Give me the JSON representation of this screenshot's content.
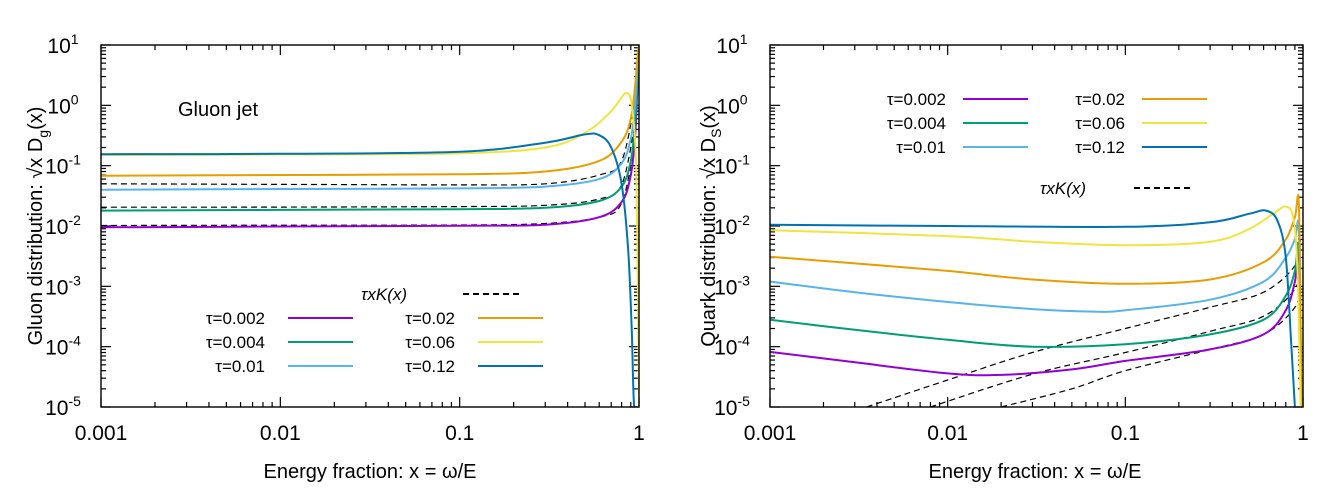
{
  "chart_data": [
    {
      "type": "line",
      "name": "gluon",
      "annotation": "Gluon jet",
      "ylabel": "Gluon distribution: √x D",
      "ylabel_sub": "g",
      "ylabel_end": "(x)",
      "xlabel": "Energy fraction:  x = ω/E",
      "xscale": "log",
      "yscale": "log",
      "xlim": [
        0.001,
        1
      ],
      "ylim_exp": [
        -5,
        1
      ],
      "x_ticks": [
        0.001,
        0.01,
        0.1,
        1
      ],
      "x_tick_labels": [
        "0.001",
        "0.01",
        "0.1",
        "1"
      ],
      "y_tick_exponents": [
        -5,
        -4,
        -3,
        -2,
        -1,
        0,
        1
      ],
      "y_tick_labels": [
        "10",
        "10",
        "10",
        "10",
        "10",
        "10",
        "10"
      ],
      "y_tick_sup": [
        "-5",
        "-4",
        "-3",
        "-2",
        "-1",
        "0",
        "1"
      ],
      "legend_title": "τxK(x)",
      "legend_position": "bottom-right",
      "series": [
        {
          "name": "τ=0.002",
          "color": "#9400d3",
          "x": [
            0.001,
            0.01,
            0.1,
            0.3,
            0.6,
            0.8,
            0.9,
            0.95,
            0.98,
            1.0
          ],
          "y": [
            0.0095,
            0.0098,
            0.0101,
            0.0105,
            0.014,
            0.025,
            0.07,
            0.3,
            2,
            8
          ]
        },
        {
          "name": "τ=0.004",
          "color": "#009e73",
          "x": [
            0.001,
            0.01,
            0.1,
            0.3,
            0.6,
            0.8,
            0.9,
            0.95,
            0.98,
            1.0
          ],
          "y": [
            0.018,
            0.0185,
            0.019,
            0.02,
            0.026,
            0.045,
            0.12,
            0.5,
            2.5,
            9
          ]
        },
        {
          "name": "τ=0.01",
          "color": "#56b4e9",
          "x": [
            0.001,
            0.01,
            0.1,
            0.3,
            0.6,
            0.8,
            0.9,
            0.95,
            0.98,
            1.0
          ],
          "y": [
            0.04,
            0.041,
            0.042,
            0.045,
            0.06,
            0.11,
            0.28,
            1.0,
            4,
            10
          ]
        },
        {
          "name": "τ=0.02",
          "color": "#e69f00",
          "x": [
            0.001,
            0.01,
            0.1,
            0.3,
            0.6,
            0.8,
            0.9,
            0.95,
            0.98,
            1.0
          ],
          "y": [
            0.068,
            0.07,
            0.072,
            0.08,
            0.12,
            0.25,
            0.6,
            2,
            6,
            10
          ]
        },
        {
          "name": "τ=0.06",
          "color": "#f0e442",
          "x": [
            0.001,
            0.01,
            0.1,
            0.3,
            0.5,
            0.7,
            0.85,
            0.92,
            0.97,
            1.0
          ],
          "y": [
            0.15,
            0.153,
            0.16,
            0.2,
            0.35,
            0.8,
            1.6,
            0.8,
            0.05,
            1e-05
          ]
        },
        {
          "name": "τ=0.12",
          "color": "#0072b2",
          "x": [
            0.001,
            0.01,
            0.1,
            0.3,
            0.5,
            0.6,
            0.7,
            0.8,
            0.87,
            0.91,
            0.94,
            1.0
          ],
          "y": [
            0.155,
            0.157,
            0.17,
            0.24,
            0.33,
            0.32,
            0.2,
            0.05,
            0.004,
            0.0002,
            1e-05,
            1e-05
          ]
        }
      ],
      "reference": [
        {
          "name": "τxK(x), τ=0.002",
          "x": [
            0.001,
            0.01,
            0.1,
            0.3,
            0.6,
            0.8,
            0.95
          ],
          "y": [
            0.0102,
            0.0103,
            0.0104,
            0.011,
            0.014,
            0.024,
            0.25
          ]
        },
        {
          "name": "τxK(x), τ=0.004",
          "x": [
            0.001,
            0.01,
            0.1,
            0.3,
            0.6,
            0.8,
            0.95
          ],
          "y": [
            0.0205,
            0.0206,
            0.021,
            0.022,
            0.028,
            0.048,
            0.5
          ]
        },
        {
          "name": "τxK(x), τ=0.01",
          "x": [
            0.001,
            0.01,
            0.1,
            0.3,
            0.6,
            0.8,
            0.95
          ],
          "y": [
            0.05,
            0.049,
            0.048,
            0.05,
            0.07,
            0.12,
            1.2
          ]
        }
      ]
    },
    {
      "type": "line",
      "name": "quark",
      "annotation": "",
      "ylabel": "Quark distribution: √x D",
      "ylabel_sub": "S",
      "ylabel_end": "(x)",
      "xlabel": "Energy fraction:  x = ω/E",
      "xscale": "log",
      "yscale": "log",
      "xlim": [
        0.001,
        1
      ],
      "ylim_exp": [
        -5,
        1
      ],
      "x_ticks": [
        0.001,
        0.01,
        0.1,
        1
      ],
      "x_tick_labels": [
        "0.001",
        "0.01",
        "0.1",
        "1"
      ],
      "y_tick_exponents": [
        -5,
        -4,
        -3,
        -2,
        -1,
        0,
        1
      ],
      "y_tick_labels": [
        "10",
        "10",
        "10",
        "10",
        "10",
        "10",
        "10"
      ],
      "y_tick_sup": [
        "-5",
        "-4",
        "-3",
        "-2",
        "-1",
        "0",
        "1"
      ],
      "legend_title": "τxK(x)",
      "legend_position": "top-right",
      "series": [
        {
          "name": "τ=0.002",
          "color": "#9400d3",
          "x": [
            0.001,
            0.003,
            0.01,
            0.02,
            0.05,
            0.1,
            0.3,
            0.6,
            0.8,
            0.9,
            0.95,
            0.98
          ],
          "y": [
            8.2e-05,
            5.5e-05,
            3.6e-05,
            3.4e-05,
            4.2e-05,
            5.8e-05,
            9e-05,
            0.00016,
            0.0004,
            0.0012,
            0.003,
            1e-05
          ]
        },
        {
          "name": "τ=0.004",
          "color": "#009e73",
          "x": [
            0.001,
            0.003,
            0.01,
            0.03,
            0.1,
            0.3,
            0.6,
            0.8,
            0.9,
            0.95,
            0.98
          ],
          "y": [
            0.00028,
            0.00019,
            0.00013,
            0.0001,
            0.00011,
            0.00016,
            0.00028,
            0.0007,
            0.0018,
            0.004,
            1e-05
          ]
        },
        {
          "name": "τ=0.01",
          "color": "#56b4e9",
          "x": [
            0.001,
            0.003,
            0.01,
            0.03,
            0.07,
            0.1,
            0.3,
            0.6,
            0.8,
            0.9,
            0.95,
            0.98
          ],
          "y": [
            0.0012,
            0.0008,
            0.00055,
            0.00042,
            0.00038,
            0.0004,
            0.0006,
            0.0012,
            0.003,
            0.006,
            0.008,
            1e-05
          ]
        },
        {
          "name": "τ=0.02",
          "color": "#e69f00",
          "x": [
            0.001,
            0.003,
            0.01,
            0.03,
            0.1,
            0.3,
            0.6,
            0.8,
            0.9,
            0.95,
            0.98
          ],
          "y": [
            0.0031,
            0.0024,
            0.0018,
            0.0013,
            0.0011,
            0.0013,
            0.0025,
            0.006,
            0.014,
            0.02,
            1e-05
          ]
        },
        {
          "name": "τ=0.06",
          "color": "#f0e442",
          "x": [
            0.001,
            0.01,
            0.03,
            0.1,
            0.3,
            0.5,
            0.7,
            0.8,
            0.88,
            0.93,
            0.97
          ],
          "y": [
            0.0085,
            0.0068,
            0.0055,
            0.0048,
            0.0055,
            0.009,
            0.017,
            0.021,
            0.014,
            0.002,
            1e-05
          ]
        },
        {
          "name": "τ=0.12",
          "color": "#0072b2",
          "x": [
            0.001,
            0.01,
            0.1,
            0.3,
            0.5,
            0.62,
            0.72,
            0.8,
            0.86,
            0.9
          ],
          "y": [
            0.0105,
            0.01,
            0.0097,
            0.0115,
            0.016,
            0.018,
            0.012,
            0.003,
            0.0001,
            1e-05
          ]
        }
      ],
      "reference": [
        {
          "name": "τxK(x), τ=0.01",
          "x": [
            0.0035,
            0.01,
            0.03,
            0.1,
            0.3,
            0.6,
            0.9,
            0.97
          ],
          "y": [
            1e-05,
            2.8e-05,
            8e-05,
            0.0002,
            0.00045,
            0.0008,
            0.0022,
            0.006
          ]
        },
        {
          "name": "τxK(x), τ=0.004",
          "x": [
            0.008,
            0.03,
            0.1,
            0.3,
            0.6,
            0.9,
            0.97
          ],
          "y": [
            1e-05,
            3.5e-05,
            8e-05,
            0.00018,
            0.00032,
            0.0009,
            0.0024
          ]
        },
        {
          "name": "τxK(x), τ=0.002",
          "x": [
            0.02,
            0.05,
            0.1,
            0.3,
            0.6,
            0.9,
            0.97
          ],
          "y": [
            1e-05,
            2e-05,
            4e-05,
            9e-05,
            0.00016,
            0.00045,
            0.0012
          ]
        }
      ]
    }
  ]
}
